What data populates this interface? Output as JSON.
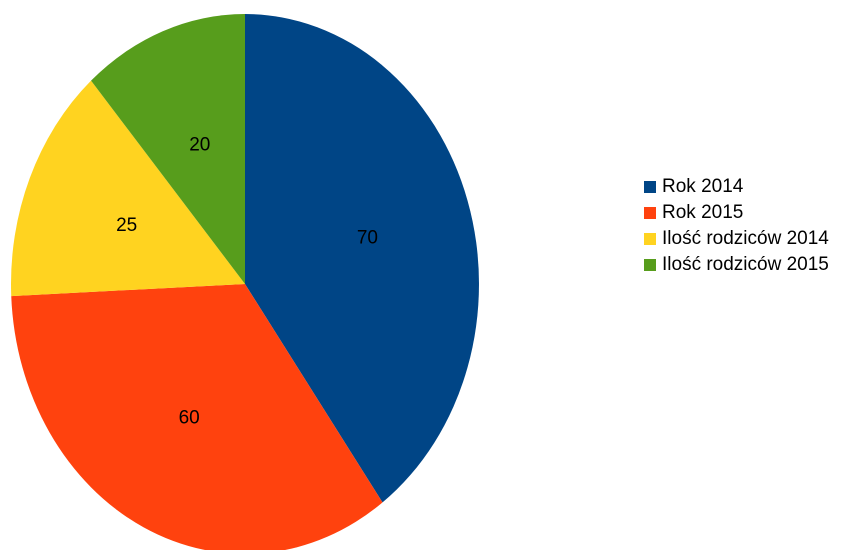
{
  "chart_data": {
    "type": "pie",
    "categories": [
      "Rok 2014",
      "Rok 2015",
      "Ilość rodziców 2014",
      "Ilość rodziców 2015"
    ],
    "values": [
      70,
      60,
      25,
      20
    ],
    "colors": [
      "#004586",
      "#ff420e",
      "#ffd320",
      "#579d1c"
    ],
    "data_labels": [
      "70",
      "60",
      "25",
      "20"
    ],
    "start_angle_deg": 0,
    "direction": "clockwise",
    "legend_position": "right",
    "title": ""
  }
}
